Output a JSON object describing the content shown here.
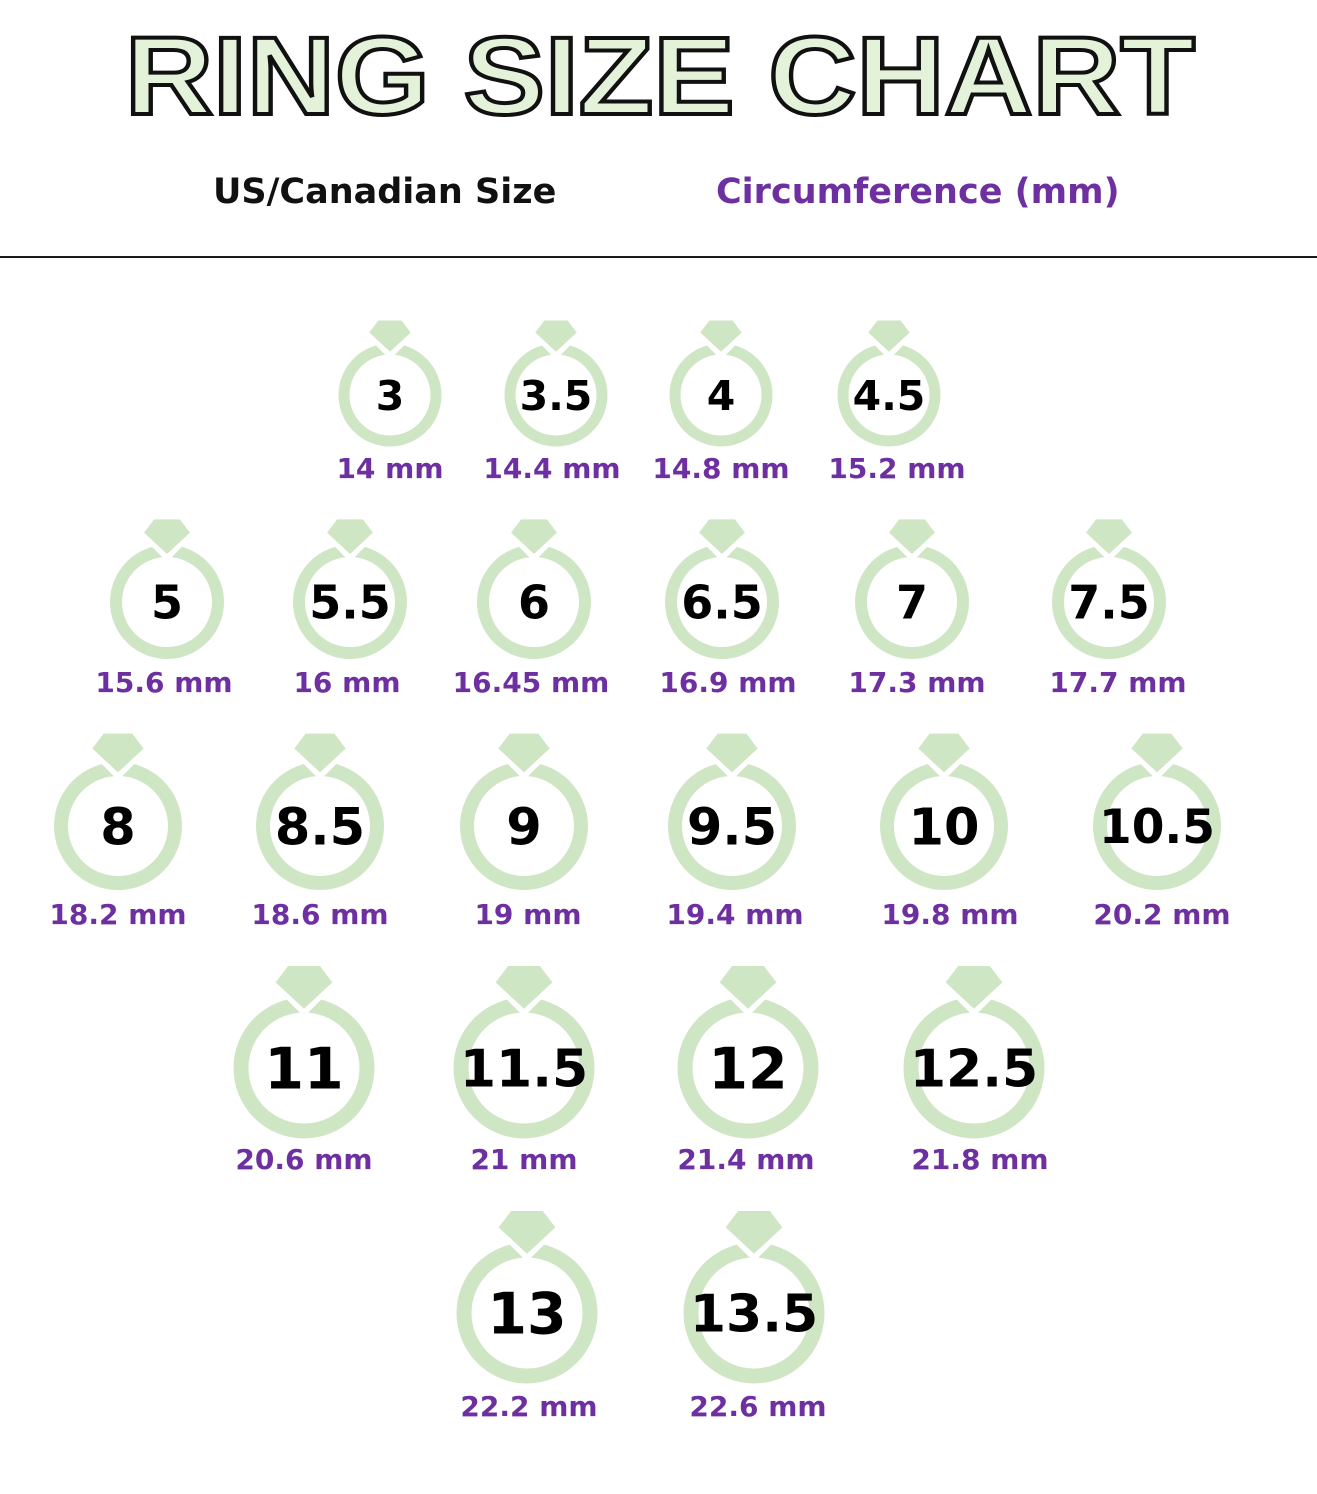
{
  "title": "RING SIZE CHART",
  "headers": {
    "size": "US/Canadian Size",
    "circumference": "Circumference (mm)"
  },
  "colors": {
    "ring": "#cfe6c4",
    "ring_stroke": "#c8e3bb",
    "title_fill": "#e4f2da",
    "title_outline": "#111111",
    "size_text": "#000000",
    "circumference_text": "#6e2fa0"
  },
  "icon": "diamond-ring-icon",
  "rows": [
    [
      {
        "size": "3",
        "circumference": "14 mm"
      },
      {
        "size": "3.5",
        "circumference": "14.4 mm"
      },
      {
        "size": "4",
        "circumference": "14.8 mm"
      },
      {
        "size": "4.5",
        "circumference": "15.2 mm"
      }
    ],
    [
      {
        "size": "5",
        "circumference": "15.6 mm"
      },
      {
        "size": "5.5",
        "circumference": "16 mm"
      },
      {
        "size": "6",
        "circumference": "16.45 mm"
      },
      {
        "size": "6.5",
        "circumference": "16.9 mm"
      },
      {
        "size": "7",
        "circumference": "17.3 mm"
      },
      {
        "size": "7.5",
        "circumference": "17.7 mm"
      }
    ],
    [
      {
        "size": "8",
        "circumference": "18.2 mm"
      },
      {
        "size": "8.5",
        "circumference": "18.6 mm"
      },
      {
        "size": "9",
        "circumference": "19 mm"
      },
      {
        "size": "9.5",
        "circumference": "19.4 mm"
      },
      {
        "size": "10",
        "circumference": "19.8 mm"
      },
      {
        "size": "10.5",
        "circumference": "20.2 mm"
      }
    ],
    [
      {
        "size": "11",
        "circumference": "20.6 mm"
      },
      {
        "size": "11.5",
        "circumference": "21 mm"
      },
      {
        "size": "12",
        "circumference": "21.4 mm"
      },
      {
        "size": "12.5",
        "circumference": "21.8 mm"
      }
    ],
    [
      {
        "size": "13",
        "circumference": "22.2 mm"
      },
      {
        "size": "13.5",
        "circumference": "22.6 mm"
      }
    ]
  ]
}
